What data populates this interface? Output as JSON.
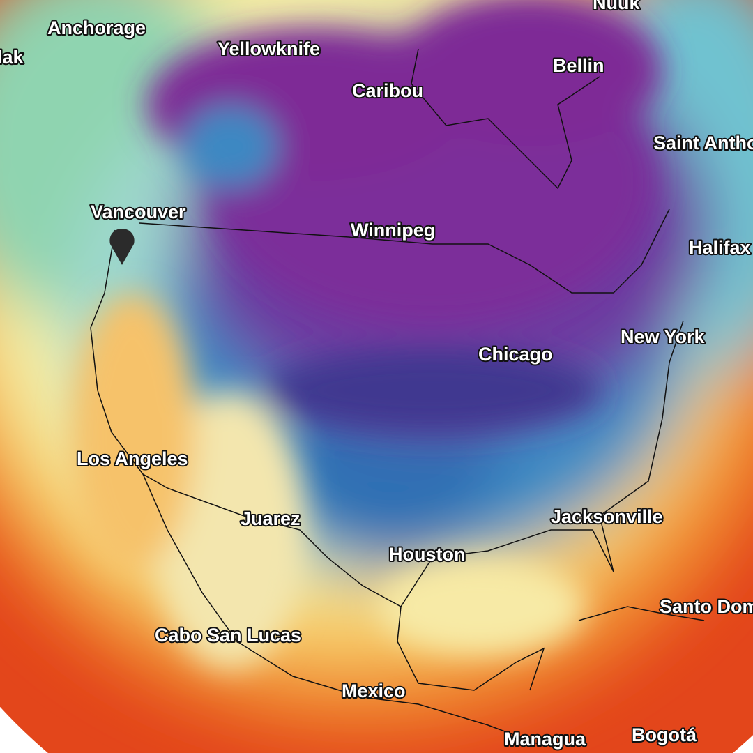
{
  "map": {
    "labels": [
      "Nuuk",
      "Anchorage",
      "lak",
      "Yellowknife",
      "Bellin",
      "Caribou",
      "Saint Antho",
      "Vancouver",
      "Winnipeg",
      "Halifax",
      "New York",
      "Chicago",
      "Los Angeles",
      "Juarez",
      "Jacksonville",
      "Houston",
      "Santo Dom",
      "Cabo San Lucas",
      "Mexico",
      "Managua",
      "Bogotá"
    ]
  }
}
